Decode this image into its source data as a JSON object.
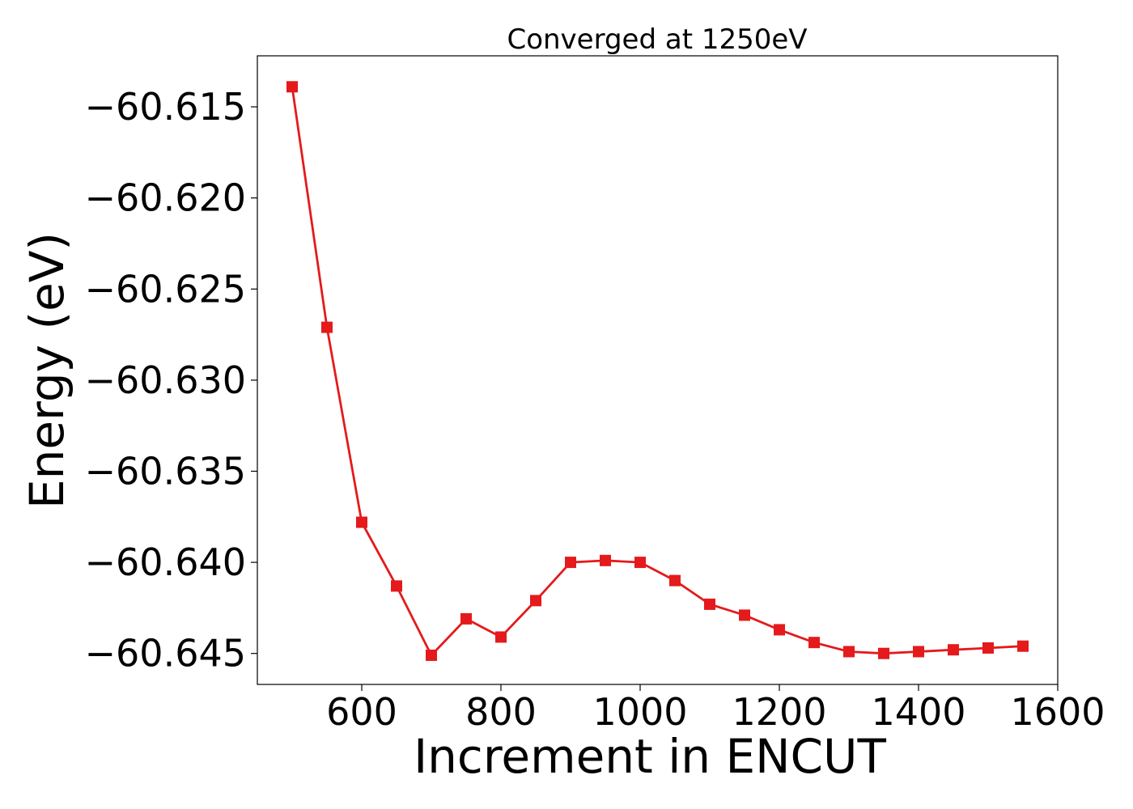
{
  "chart_data": {
    "type": "line",
    "title": "Converged at 1250eV",
    "xlabel": "Increment in ENCUT",
    "ylabel": "Energy (eV)",
    "xlim": [
      450,
      1600
    ],
    "ylim": [
      -60.6467,
      -60.6122
    ],
    "xticks": [
      600,
      800,
      1000,
      1200,
      1400,
      1600
    ],
    "yticks": [
      -60.615,
      -60.62,
      -60.625,
      -60.63,
      -60.635,
      -60.64,
      -60.645
    ],
    "ytick_labels": [
      "−60.615",
      "−60.620",
      "−60.625",
      "−60.630",
      "−60.635",
      "−60.640",
      "−60.645"
    ],
    "grid": false,
    "series": [
      {
        "color": "#e41a1c",
        "marker": "square",
        "x": [
          500,
          550,
          600,
          650,
          700,
          750,
          800,
          850,
          900,
          950,
          1000,
          1050,
          1100,
          1150,
          1200,
          1250,
          1300,
          1350,
          1400,
          1450,
          1500,
          1550
        ],
        "y": [
          -60.6139,
          -60.6271,
          -60.6378,
          -60.6413,
          -60.6451,
          -60.6431,
          -60.6441,
          -60.6421,
          -60.64,
          -60.6399,
          -60.64,
          -60.641,
          -60.6423,
          -60.6429,
          -60.6437,
          -60.6444,
          -60.6449,
          -60.645,
          -60.6449,
          -60.6448,
          -60.6447,
          -60.6446
        ]
      }
    ]
  }
}
